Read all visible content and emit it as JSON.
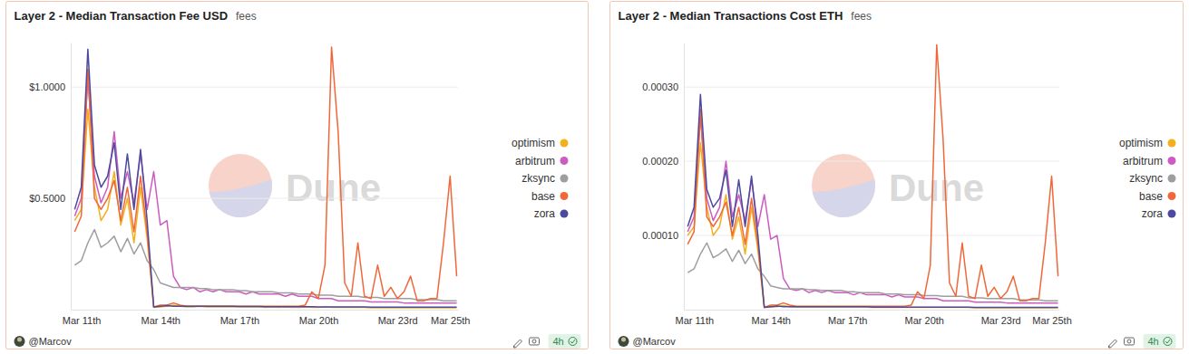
{
  "chart_data": [
    {
      "type": "line",
      "title": "Layer 2 - Median Transaction Fee USD",
      "subtitle": "fees",
      "author": "@Marcov",
      "refresh": "4h",
      "watermark": "Dune",
      "grid": true,
      "legend": "right",
      "xlim": [
        10.6,
        25.3
      ],
      "xticks": [
        {
          "value": 11,
          "label": "Mar 11th"
        },
        {
          "value": 14,
          "label": "Mar 14th"
        },
        {
          "value": 17,
          "label": "Mar 17th"
        },
        {
          "value": 20,
          "label": "Mar 20th"
        },
        {
          "value": 23,
          "label": "Mar 23rd"
        },
        {
          "value": 25,
          "label": "Mar 25th"
        }
      ],
      "ylim": [
        0,
        1.2
      ],
      "yticks": [
        {
          "value": 0.5,
          "label": "$0.5000"
        },
        {
          "value": 1,
          "label": "$1.0000"
        }
      ],
      "x": [
        10.75,
        11,
        11.25,
        11.5,
        11.75,
        12,
        12.25,
        12.5,
        12.75,
        13,
        13.25,
        13.5,
        13.75,
        14,
        14.25,
        14.5,
        14.75,
        15,
        15.25,
        15.5,
        15.75,
        16,
        16.25,
        16.5,
        16.75,
        17,
        17.25,
        17.5,
        17.75,
        18,
        18.25,
        18.5,
        18.75,
        19,
        19.25,
        19.5,
        19.75,
        20,
        20.25,
        20.5,
        20.75,
        21,
        21.25,
        21.5,
        21.75,
        22,
        22.25,
        22.5,
        22.75,
        23,
        23.25,
        23.5,
        23.75,
        24,
        24.25,
        24.5,
        24.75,
        25,
        25.25
      ],
      "series": [
        {
          "name": "optimism",
          "color": "#f2b01e",
          "values": [
            0.4,
            0.45,
            0.9,
            0.55,
            0.4,
            0.45,
            0.62,
            0.38,
            0.5,
            0.3,
            0.55,
            0.32,
            0.01,
            0.012,
            0.015,
            0.02,
            0.015,
            0.012,
            0.012,
            0.015,
            0.012,
            0.012,
            0.012,
            0.012,
            0.012,
            0.012,
            0.012,
            0.012,
            0.012,
            0.01,
            0.012,
            0.01,
            0.012,
            0.01,
            0.01,
            0.012,
            0.01,
            0.01,
            0.012,
            0.01,
            0.01,
            0.01,
            0.01,
            0.01,
            0.01,
            0.008,
            0.008,
            0.008,
            0.008,
            0.008,
            0.008,
            0.008,
            0.008,
            0.008,
            0.008,
            0.008,
            0.008,
            0.008,
            0.008
          ]
        },
        {
          "name": "arbitrum",
          "color": "#cc5cc0",
          "values": [
            0.42,
            0.5,
            1.05,
            0.6,
            0.48,
            0.55,
            0.8,
            0.5,
            0.62,
            0.48,
            0.7,
            0.45,
            0.62,
            0.38,
            0.4,
            0.15,
            0.1,
            0.09,
            0.1,
            0.08,
            0.09,
            0.08,
            0.09,
            0.08,
            0.08,
            0.08,
            0.07,
            0.08,
            0.07,
            0.07,
            0.07,
            0.07,
            0.06,
            0.07,
            0.06,
            0.06,
            0.06,
            0.05,
            0.05,
            0.05,
            0.04,
            0.04,
            0.04,
            0.04,
            0.04,
            0.035,
            0.035,
            0.035,
            0.035,
            0.035,
            0.03,
            0.03,
            0.03,
            0.03,
            0.03,
            0.03,
            0.03,
            0.03,
            0.03
          ]
        },
        {
          "name": "zksync",
          "color": "#9e9e9e",
          "values": [
            0.2,
            0.22,
            0.3,
            0.36,
            0.28,
            0.3,
            0.33,
            0.26,
            0.32,
            0.25,
            0.3,
            0.22,
            0.18,
            0.12,
            0.11,
            0.1,
            0.1,
            0.1,
            0.1,
            0.095,
            0.095,
            0.09,
            0.09,
            0.09,
            0.09,
            0.085,
            0.085,
            0.08,
            0.08,
            0.08,
            0.08,
            0.075,
            0.075,
            0.075,
            0.07,
            0.07,
            0.07,
            0.065,
            0.065,
            0.065,
            0.06,
            0.06,
            0.06,
            0.06,
            0.055,
            0.055,
            0.055,
            0.05,
            0.05,
            0.05,
            0.05,
            0.05,
            0.045,
            0.045,
            0.045,
            0.045,
            0.04,
            0.04,
            0.04
          ]
        },
        {
          "name": "base",
          "color": "#f0673a",
          "values": [
            0.35,
            0.42,
            1.08,
            0.5,
            0.45,
            0.5,
            0.58,
            0.4,
            0.55,
            0.35,
            0.6,
            0.35,
            0.012,
            0.02,
            0.02,
            0.03,
            0.02,
            0.015,
            0.015,
            0.015,
            0.015,
            0.015,
            0.015,
            0.015,
            0.015,
            0.015,
            0.015,
            0.015,
            0.015,
            0.015,
            0.015,
            0.015,
            0.015,
            0.015,
            0.015,
            0.02,
            0.08,
            0.05,
            0.2,
            1.18,
            0.8,
            0.12,
            0.06,
            0.3,
            0.06,
            0.05,
            0.2,
            0.06,
            0.1,
            0.05,
            0.08,
            0.15,
            0.04,
            0.04,
            0.05,
            0.05,
            0.3,
            0.6,
            0.15
          ]
        },
        {
          "name": "zora",
          "color": "#4b4a9e",
          "values": [
            0.45,
            0.55,
            1.17,
            0.65,
            0.55,
            0.6,
            0.75,
            0.45,
            0.7,
            0.45,
            0.72,
            0.4,
            0.012,
            0.015,
            0.018,
            0.015,
            0.015,
            0.015,
            0.015,
            0.015,
            0.015,
            0.015,
            0.015,
            0.015,
            0.015,
            0.014,
            0.014,
            0.014,
            0.014,
            0.013,
            0.013,
            0.013,
            0.013,
            0.013,
            0.013,
            0.013,
            0.013,
            0.012,
            0.012,
            0.012,
            0.012,
            0.012,
            0.012,
            0.012,
            0.012,
            0.011,
            0.011,
            0.011,
            0.011,
            0.011,
            0.011,
            0.011,
            0.011,
            0.011,
            0.011,
            0.011,
            0.011,
            0.011,
            0.011
          ]
        }
      ]
    },
    {
      "type": "line",
      "title": "Layer 2 - Median Transactions Cost ETH",
      "subtitle": "fees",
      "author": "@Marcov",
      "refresh": "4h",
      "watermark": "Dune",
      "grid": true,
      "legend": "right",
      "xlim": [
        10.6,
        25.3
      ],
      "xticks": [
        {
          "value": 11,
          "label": "Mar 11th"
        },
        {
          "value": 14,
          "label": "Mar 14th"
        },
        {
          "value": 17,
          "label": "Mar 17th"
        },
        {
          "value": 20,
          "label": "Mar 20th"
        },
        {
          "value": 23,
          "label": "Mar 23rd"
        },
        {
          "value": 25,
          "label": "Mar 25th"
        }
      ],
      "ylim": [
        0,
        0.00036
      ],
      "yticks": [
        {
          "value": 0.0001,
          "label": "0.00010"
        },
        {
          "value": 0.0002,
          "label": "0.00020"
        },
        {
          "value": 0.0003,
          "label": "0.00030"
        }
      ],
      "x": [
        10.75,
        11,
        11.25,
        11.5,
        11.75,
        12,
        12.25,
        12.5,
        12.75,
        13,
        13.25,
        13.5,
        13.75,
        14,
        14.25,
        14.5,
        14.75,
        15,
        15.25,
        15.5,
        15.75,
        16,
        16.25,
        16.5,
        16.75,
        17,
        17.25,
        17.5,
        17.75,
        18,
        18.25,
        18.5,
        18.75,
        19,
        19.25,
        19.5,
        19.75,
        20,
        20.25,
        20.5,
        20.75,
        21,
        21.25,
        21.5,
        21.75,
        22,
        22.25,
        22.5,
        22.75,
        23,
        23.25,
        23.5,
        23.75,
        24,
        24.25,
        24.5,
        24.75,
        25,
        25.25
      ],
      "series": [
        {
          "name": "optimism",
          "color": "#f2b01e",
          "values": [
            0.0001,
            0.000112,
            0.000225,
            0.000138,
            0.0001,
            0.000112,
            0.000155,
            9.5e-05,
            0.000125,
            7.5e-05,
            0.000138,
            8e-05,
            3e-06,
            3.5e-06,
            4e-06,
            5.5e-06,
            4e-06,
            3.5e-06,
            3.5e-06,
            3.5e-06,
            3.5e-06,
            3.5e-06,
            3.5e-06,
            3.5e-06,
            3.5e-06,
            3.5e-06,
            3.5e-06,
            3.5e-06,
            3.5e-06,
            3e-06,
            3e-06,
            3e-06,
            3e-06,
            3e-06,
            3e-06,
            3e-06,
            3e-06,
            3e-06,
            3e-06,
            3e-06,
            3e-06,
            3e-06,
            3e-06,
            3e-06,
            3e-06,
            2.5e-06,
            2.5e-06,
            2.5e-06,
            2.5e-06,
            2.5e-06,
            2.5e-06,
            2.5e-06,
            2.5e-06,
            2.5e-06,
            2.5e-06,
            2.5e-06,
            2.5e-06,
            2.5e-06,
            2.5e-06
          ]
        },
        {
          "name": "arbitrum",
          "color": "#cc5cc0",
          "values": [
            0.000105,
            0.000125,
            0.00026,
            0.00015,
            0.00012,
            0.000138,
            0.0002,
            0.000125,
            0.000155,
            0.00012,
            0.000175,
            0.000112,
            0.000155,
            9.5e-05,
            0.0001,
            4.2e-05,
            2.8e-05,
            2.6e-05,
            2.8e-05,
            2.3e-05,
            2.6e-05,
            2.3e-05,
            2.6e-05,
            2.3e-05,
            2.3e-05,
            2.3e-05,
            2e-05,
            2.3e-05,
            2e-05,
            2e-05,
            2e-05,
            2e-05,
            1.7e-05,
            2e-05,
            1.7e-05,
            1.7e-05,
            1.7e-05,
            1.5e-05,
            1.5e-05,
            1.5e-05,
            1.2e-05,
            1.2e-05,
            1.2e-05,
            1.2e-05,
            1.2e-05,
            1e-05,
            1e-05,
            1e-05,
            1e-05,
            1e-05,
            9e-06,
            9e-06,
            9e-06,
            9e-06,
            9e-06,
            9e-06,
            9e-06,
            9e-06,
            9e-06
          ]
        },
        {
          "name": "zksync",
          "color": "#9e9e9e",
          "values": [
            5e-05,
            5.5e-05,
            7.5e-05,
            9e-05,
            7e-05,
            7.5e-05,
            8.2e-05,
            6.5e-05,
            8e-05,
            6.2e-05,
            7.5e-05,
            5.5e-05,
            4.5e-05,
            3.2e-05,
            3e-05,
            2.8e-05,
            2.8e-05,
            2.8e-05,
            2.8e-05,
            2.7e-05,
            2.7e-05,
            2.6e-05,
            2.6e-05,
            2.6e-05,
            2.6e-05,
            2.4e-05,
            2.4e-05,
            2.3e-05,
            2.3e-05,
            2.3e-05,
            2.3e-05,
            2.1e-05,
            2.1e-05,
            2.1e-05,
            2e-05,
            2e-05,
            2e-05,
            1.9e-05,
            1.9e-05,
            1.9e-05,
            1.8e-05,
            1.8e-05,
            1.8e-05,
            1.8e-05,
            1.6e-05,
            1.6e-05,
            1.6e-05,
            1.5e-05,
            1.5e-05,
            1.5e-05,
            1.5e-05,
            1.5e-05,
            1.3e-05,
            1.3e-05,
            1.3e-05,
            1.3e-05,
            1.2e-05,
            1.2e-05,
            1.2e-05
          ]
        },
        {
          "name": "base",
          "color": "#f0673a",
          "values": [
            8.8e-05,
            0.000105,
            0.00027,
            0.000125,
            0.000112,
            0.000125,
            0.000145,
            0.0001,
            0.000138,
            8.8e-05,
            0.00015,
            8.8e-05,
            3e-06,
            6e-06,
            6e-06,
            9e-06,
            6e-06,
            4.5e-06,
            4.5e-06,
            4.5e-06,
            4.5e-06,
            4.5e-06,
            4.5e-06,
            4.5e-06,
            4.5e-06,
            4.5e-06,
            4.5e-06,
            4.5e-06,
            4.5e-06,
            4.5e-06,
            4.5e-06,
            4.5e-06,
            4.5e-06,
            4.5e-06,
            4.5e-06,
            6e-06,
            2.4e-05,
            1.5e-05,
            6e-05,
            0.000357,
            0.00023,
            3.6e-05,
            1.8e-05,
            9e-05,
            1.8e-05,
            1.5e-05,
            6e-05,
            1.8e-05,
            3e-05,
            1.5e-05,
            2.4e-05,
            4.5e-05,
            1.2e-05,
            1.2e-05,
            1.5e-05,
            1.5e-05,
            9e-05,
            0.00018,
            4.5e-05
          ]
        },
        {
          "name": "zora",
          "color": "#4b4a9e",
          "values": [
            0.000112,
            0.000138,
            0.00029,
            0.000162,
            0.000138,
            0.00015,
            0.000188,
            0.000112,
            0.000175,
            0.000112,
            0.00018,
            0.0001,
            3e-06,
            4e-06,
            5e-06,
            4e-06,
            4e-06,
            4e-06,
            4e-06,
            4e-06,
            4e-06,
            4e-06,
            4e-06,
            4e-06,
            4e-06,
            4e-06,
            4e-06,
            4e-06,
            4e-06,
            3.5e-06,
            3.5e-06,
            3.5e-06,
            3.5e-06,
            3.5e-06,
            3.5e-06,
            3.5e-06,
            3.5e-06,
            3.5e-06,
            3.5e-06,
            3.5e-06,
            3.5e-06,
            3.5e-06,
            3.5e-06,
            3.5e-06,
            3.5e-06,
            3e-06,
            3e-06,
            3e-06,
            3e-06,
            3e-06,
            3e-06,
            3e-06,
            3e-06,
            3e-06,
            3e-06,
            3e-06,
            3e-06,
            3e-06,
            3e-06
          ]
        }
      ]
    }
  ]
}
